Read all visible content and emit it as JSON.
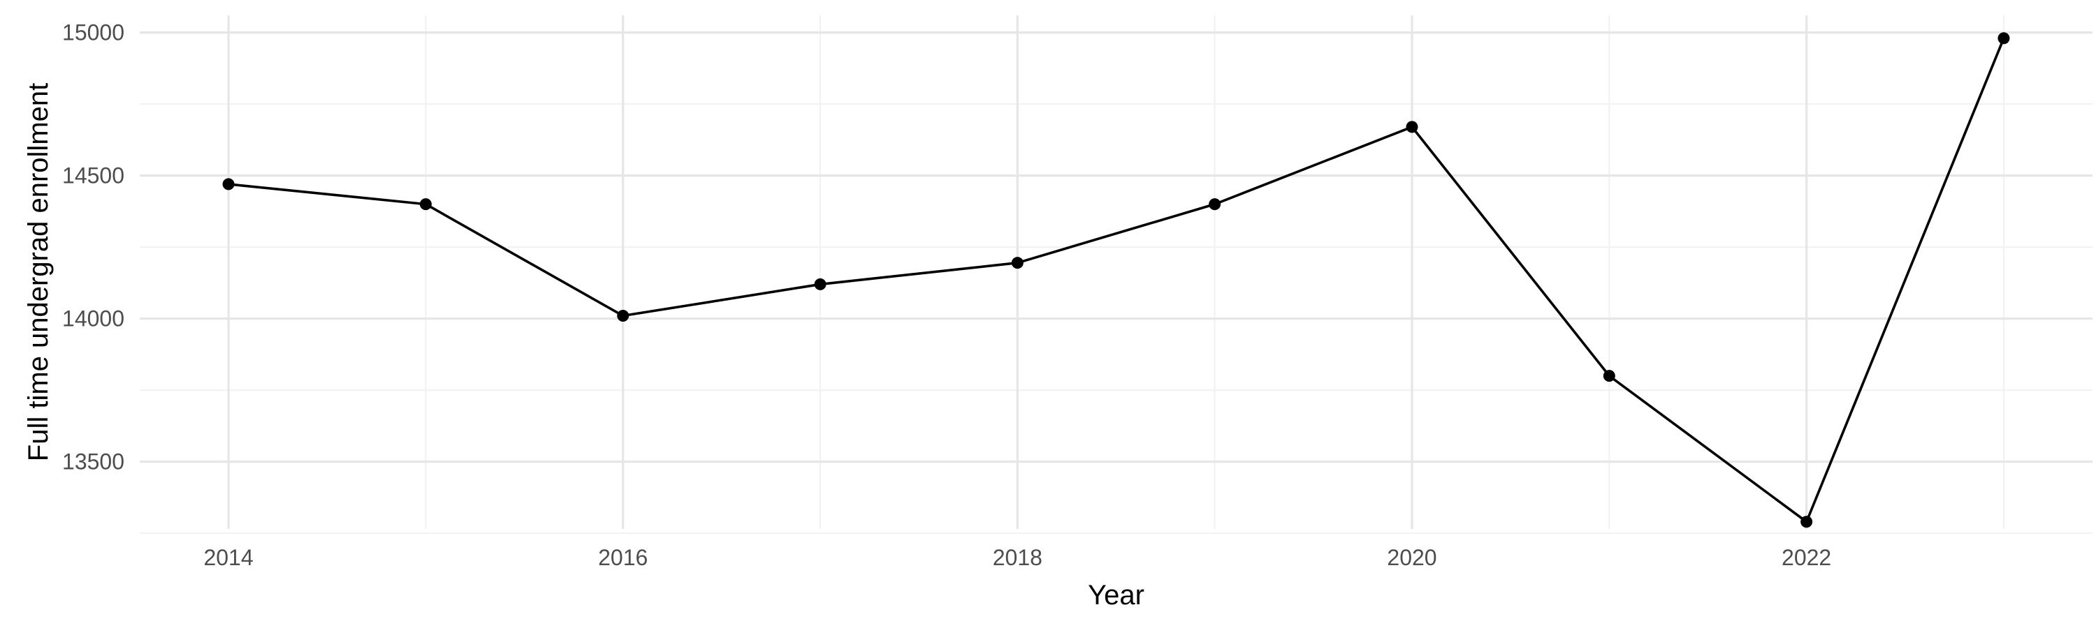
{
  "chart_data": {
    "type": "line",
    "title": "",
    "xlabel": "Year",
    "ylabel": "Full time undergrad enrollment",
    "x": [
      2014,
      2015,
      2016,
      2017,
      2018,
      2019,
      2020,
      2021,
      2022,
      2023
    ],
    "series": [
      {
        "values": [
          14470,
          14400,
          14010,
          14120,
          14195,
          14400,
          14670,
          13800,
          13290,
          14980
        ]
      }
    ],
    "xlim": [
      2013.55,
      2023.45
    ],
    "ylim": [
      13265,
      15060
    ],
    "x_ticks": [
      2014,
      2016,
      2018,
      2020,
      2022
    ],
    "x_tick_labels": [
      "2014",
      "2016",
      "2018",
      "2020",
      "2022"
    ],
    "x_minor_ticks": [
      2015,
      2017,
      2019,
      2021,
      2023
    ],
    "y_ticks": [
      13500,
      14000,
      14500,
      15000
    ],
    "y_tick_labels": [
      "13500",
      "14000",
      "14500",
      "15000"
    ],
    "y_minor_ticks": [
      13250,
      13750,
      14250,
      14750
    ],
    "grid": true,
    "legend": "none",
    "colors": {
      "line": "#000000",
      "point": "#000000",
      "grid_major": "#e6e6e6",
      "grid_minor": "#f2f2f2",
      "tick_text": "#4d4d4d",
      "axis_title": "#000000",
      "background": "#ffffff"
    }
  }
}
